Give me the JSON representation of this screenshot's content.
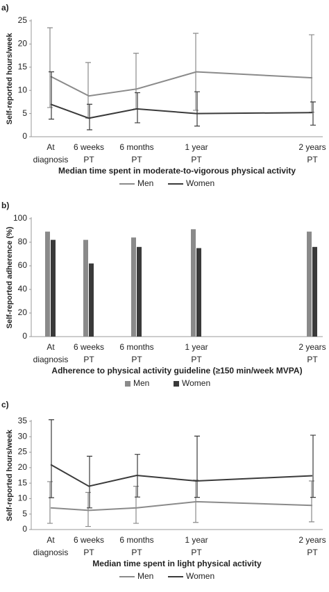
{
  "chart_data": [
    {
      "type": "line",
      "label": "a)",
      "y_label": "Self-reported hours/week",
      "x_label": "Median time spent in moderate-to-vigorous physical activity",
      "categories": [
        [
          "At",
          "diagnosis"
        ],
        [
          "6 weeks",
          "PT"
        ],
        [
          "6 months",
          "PT"
        ],
        [
          "1 year",
          "PT"
        ],
        [
          "2 years",
          "PT"
        ]
      ],
      "ylim": [
        0,
        25
      ],
      "yticks": [
        0,
        5,
        10,
        15,
        20,
        25
      ],
      "legend": "bottom",
      "series": [
        {
          "name": "Men",
          "color": "#8a8a8a",
          "values": [
            13,
            8.8,
            10.3,
            14,
            12.7
          ],
          "error_low": [
            6.3,
            4,
            6,
            5.7,
            5.3
          ],
          "error_high": [
            23.5,
            16,
            18,
            22.3,
            22
          ]
        },
        {
          "name": "Women",
          "color": "#3a3a3a",
          "values": [
            7,
            4,
            6,
            5,
            5.2
          ],
          "error_low": [
            3.8,
            1.5,
            3,
            2.3,
            2.5
          ],
          "error_high": [
            14,
            7,
            9.5,
            9.7,
            7.5
          ]
        }
      ]
    },
    {
      "type": "bar",
      "label": "b)",
      "y_label": "Self-reported adherence (%)",
      "x_label": "Adherence to physical activity guideline (≥150 min/week MVPA)",
      "categories": [
        [
          "At",
          "diagnosis"
        ],
        [
          "6 weeks",
          "PT"
        ],
        [
          "6 months",
          "PT"
        ],
        [
          "1 year",
          "PT"
        ],
        [
          "2 years",
          "PT"
        ]
      ],
      "ylim": [
        0,
        100
      ],
      "yticks": [
        0,
        20,
        40,
        60,
        80,
        100
      ],
      "legend": "bottom",
      "series": [
        {
          "name": "Men",
          "color": "#8a8a8a",
          "values": [
            89,
            82,
            84,
            91,
            89
          ]
        },
        {
          "name": "Women",
          "color": "#3a3a3a",
          "values": [
            82,
            62,
            76,
            75,
            76
          ]
        }
      ]
    },
    {
      "type": "line",
      "label": "c)",
      "y_label": "Self-reported hours/week",
      "x_label": "Median time spent in light physical activity",
      "categories": [
        [
          "At",
          "diagnosis"
        ],
        [
          "6 weeks",
          "PT"
        ],
        [
          "6 months",
          "PT"
        ],
        [
          "1 year",
          "PT"
        ],
        [
          "2 years",
          "PT"
        ]
      ],
      "ylim": [
        0,
        35
      ],
      "yticks": [
        0,
        5,
        10,
        15,
        20,
        25,
        30,
        35
      ],
      "legend": "bottom",
      "series": [
        {
          "name": "Men",
          "color": "#8a8a8a",
          "values": [
            7,
            6.2,
            7,
            9,
            7.8
          ],
          "error_low": [
            2,
            1,
            2,
            2.3,
            2.5
          ],
          "error_high": [
            15.5,
            12,
            14,
            16,
            15.7
          ]
        },
        {
          "name": "Women",
          "color": "#3a3a3a",
          "values": [
            21,
            14,
            17.5,
            15.7,
            17.4
          ],
          "error_low": [
            10.3,
            7,
            10.5,
            10.4,
            10.4
          ],
          "error_high": [
            35.5,
            23.7,
            24.3,
            30.2,
            30.5
          ]
        }
      ]
    }
  ]
}
